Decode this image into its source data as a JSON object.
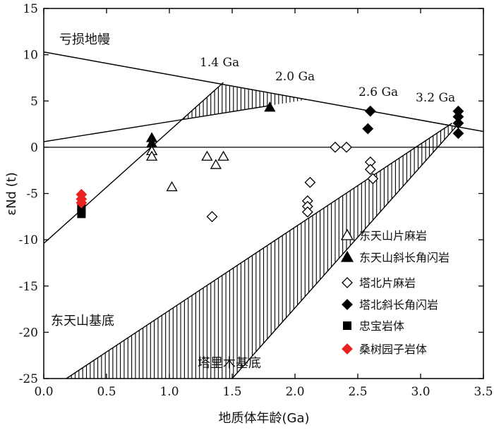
{
  "chart_data": {
    "type": "scatter",
    "xlabel": "地质体年龄(Ga)",
    "ylabel": "εNd (t)",
    "xlim": [
      0,
      3.5
    ],
    "ylim": [
      -25,
      15
    ],
    "xticks": [
      "0.0",
      "0.5",
      "1.0",
      "1.5",
      "2.0",
      "2.5",
      "3.0",
      "3.5"
    ],
    "xtick_values": [
      0,
      0.5,
      1.0,
      1.5,
      2.0,
      2.5,
      3.0,
      3.5
    ],
    "yticks": [
      "15",
      "10",
      "5",
      "0",
      "-5",
      "-10",
      "-15",
      "-20",
      "-25"
    ],
    "ytick_values": [
      15,
      10,
      5,
      0,
      -5,
      -10,
      -15,
      -20,
      -25
    ],
    "grid": false,
    "depleted_mantle": {
      "label": "亏损地幔",
      "line": [
        [
          0,
          10.3
        ],
        [
          3.5,
          1.7
        ]
      ]
    },
    "chur_line": {
      "y": 0
    },
    "bands": [
      {
        "label": "东天山基底",
        "lower": [
          [
            0,
            -10.4
          ],
          [
            1.43,
            7.0
          ]
        ],
        "upper": [
          [
            0,
            0.6
          ],
          [
            1.8,
            4.5
          ]
        ]
      },
      {
        "label": "塔里木基底",
        "lower": [
          [
            0.18,
            -25
          ],
          [
            3.25,
            2.6
          ]
        ],
        "upper": [
          [
            1.5,
            -25
          ],
          [
            3.3,
            2.5
          ]
        ]
      }
    ],
    "model_ages": [
      {
        "label": "1.4 Ga",
        "x": 1.4
      },
      {
        "label": "2.0 Ga",
        "x": 2.0
      },
      {
        "label": "2.6 Ga",
        "x": 2.6
      },
      {
        "label": "3.2 Ga",
        "x": 3.2
      }
    ],
    "series": [
      {
        "name": "东天山片麻岩",
        "marker": "triangle-open",
        "color": "#000000",
        "points": [
          [
            0.86,
            -0.4
          ],
          [
            0.86,
            -1.0
          ],
          [
            1.02,
            -4.3
          ],
          [
            1.3,
            -1.0
          ],
          [
            1.37,
            -1.9
          ],
          [
            1.43,
            -1.0
          ]
        ]
      },
      {
        "name": "东天山斜长角闪岩",
        "marker": "triangle-filled",
        "color": "#000000",
        "points": [
          [
            0.86,
            1.0
          ],
          [
            0.86,
            0.4
          ],
          [
            1.8,
            4.3
          ]
        ]
      },
      {
        "name": "塔北片麻岩",
        "marker": "diamond-open",
        "color": "#000000",
        "points": [
          [
            1.34,
            -7.5
          ],
          [
            2.1,
            -5.8
          ],
          [
            2.1,
            -6.4
          ],
          [
            2.1,
            -7.0
          ],
          [
            2.12,
            -3.8
          ],
          [
            2.32,
            0.0
          ],
          [
            2.41,
            0.0
          ],
          [
            2.6,
            -1.6
          ],
          [
            2.6,
            -2.4
          ],
          [
            2.62,
            -3.4
          ]
        ]
      },
      {
        "name": "塔北斜长角闪岩",
        "marker": "diamond-filled",
        "color": "#000000",
        "points": [
          [
            2.58,
            2.0
          ],
          [
            2.6,
            3.9
          ],
          [
            3.3,
            3.9
          ],
          [
            3.3,
            3.3
          ],
          [
            3.3,
            2.6
          ],
          [
            3.3,
            1.5
          ]
        ]
      },
      {
        "name": "忠宝岩体",
        "marker": "square-filled",
        "color": "#000000",
        "points": [
          [
            0.3,
            -6.4
          ],
          [
            0.3,
            -6.8
          ],
          [
            0.3,
            -7.2
          ]
        ]
      },
      {
        "name": "桑树园子岩体",
        "marker": "diamond-filled",
        "color": "#e8231f",
        "points": [
          [
            0.3,
            -5.1
          ],
          [
            0.3,
            -5.6
          ],
          [
            0.3,
            -6.0
          ]
        ]
      }
    ],
    "legend_position": "bottom-right"
  }
}
